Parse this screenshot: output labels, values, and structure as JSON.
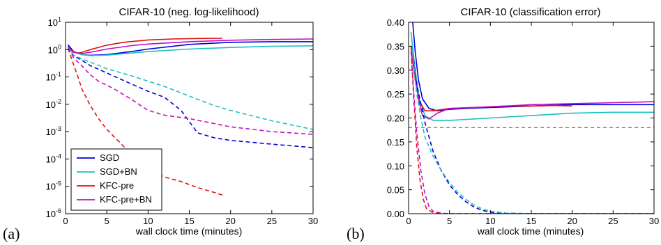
{
  "panel_labels": [
    "(a)",
    "(b)"
  ],
  "colors": {
    "SGD": "#0000dd",
    "SGD+BN": "#1fbfbf",
    "KFC-pre": "#e01010",
    "KFC-pre+BN": "#c010c0",
    "ref": "#555555"
  },
  "chart_data": [
    {
      "type": "line",
      "title": "CIFAR-10 (neg. log-likelihood)",
      "xlabel": "wall clock time (minutes)",
      "ylabel": "",
      "xlim": [
        0,
        30
      ],
      "ylim": [
        1e-06,
        10
      ],
      "yscale": "log",
      "xticks": [
        0,
        5,
        10,
        15,
        20,
        25,
        30
      ],
      "yticks": [
        {
          "base": "10",
          "exp": "-6",
          "value": 1e-06
        },
        {
          "base": "10",
          "exp": "-5",
          "value": 1e-05
        },
        {
          "base": "10",
          "exp": "-4",
          "value": 0.0001
        },
        {
          "base": "10",
          "exp": "-3",
          "value": 0.001
        },
        {
          "base": "10",
          "exp": "-2",
          "value": 0.01
        },
        {
          "base": "10",
          "exp": "-1",
          "value": 0.1
        },
        {
          "base": "10",
          "exp": "0",
          "value": 1
        },
        {
          "base": "10",
          "exp": "1",
          "value": 10
        }
      ],
      "legend": {
        "position": "lower-left",
        "entries": [
          "SGD",
          "SGD+BN",
          "KFC-pre",
          "KFC-pre+BN"
        ]
      },
      "series": [
        {
          "name": "SGD",
          "style": "solid",
          "points": [
            [
              0.3,
              1.5
            ],
            [
              1,
              0.85
            ],
            [
              2,
              0.65
            ],
            [
              3,
              0.62
            ],
            [
              5,
              0.66
            ],
            [
              8,
              0.85
            ],
            [
              10,
              1.05
            ],
            [
              15,
              1.55
            ],
            [
              20,
              1.85
            ],
            [
              25,
              1.95
            ],
            [
              30,
              1.95
            ]
          ]
        },
        {
          "name": "SGD+BN",
          "style": "solid",
          "points": [
            [
              0.3,
              1.2
            ],
            [
              1,
              0.8
            ],
            [
              2,
              0.65
            ],
            [
              3,
              0.6
            ],
            [
              5,
              0.63
            ],
            [
              8,
              0.75
            ],
            [
              10,
              0.85
            ],
            [
              15,
              1.05
            ],
            [
              20,
              1.2
            ],
            [
              25,
              1.32
            ],
            [
              30,
              1.38
            ]
          ]
        },
        {
          "name": "KFC-pre",
          "style": "solid",
          "points": [
            [
              0.3,
              1.2
            ],
            [
              1,
              0.85
            ],
            [
              1.5,
              0.75
            ],
            [
              2,
              0.8
            ],
            [
              3,
              1.0
            ],
            [
              5,
              1.45
            ],
            [
              7,
              1.85
            ],
            [
              10,
              2.25
            ],
            [
              13,
              2.45
            ],
            [
              16,
              2.55
            ],
            [
              19,
              2.6
            ]
          ]
        },
        {
          "name": "KFC-pre+BN",
          "style": "solid",
          "points": [
            [
              0.3,
              1.1
            ],
            [
              1,
              0.8
            ],
            [
              2,
              0.72
            ],
            [
              3,
              0.8
            ],
            [
              5,
              1.05
            ],
            [
              8,
              1.4
            ],
            [
              10,
              1.6
            ],
            [
              15,
              1.95
            ],
            [
              20,
              2.2
            ],
            [
              25,
              2.35
            ],
            [
              30,
              2.45
            ]
          ]
        },
        {
          "name": "SGD",
          "style": "dashed",
          "points": [
            [
              0.3,
              1.3
            ],
            [
              1,
              0.6
            ],
            [
              2,
              0.4
            ],
            [
              3,
              0.26
            ],
            [
              5,
              0.14
            ],
            [
              8,
              0.055
            ],
            [
              10,
              0.03
            ],
            [
              12,
              0.018
            ],
            [
              14,
              0.006
            ],
            [
              16,
              0.0009
            ],
            [
              18,
              0.0006
            ],
            [
              20,
              0.00048
            ],
            [
              25,
              0.00035
            ],
            [
              30,
              0.00026
            ]
          ]
        },
        {
          "name": "SGD+BN",
          "style": "dashed",
          "points": [
            [
              0.3,
              1.2
            ],
            [
              1,
              0.62
            ],
            [
              2,
              0.45
            ],
            [
              3,
              0.35
            ],
            [
              5,
              0.2
            ],
            [
              8,
              0.11
            ],
            [
              10,
              0.07
            ],
            [
              12,
              0.045
            ],
            [
              15,
              0.02
            ],
            [
              18,
              0.009
            ],
            [
              20,
              0.006
            ],
            [
              25,
              0.0025
            ],
            [
              30,
              0.0012
            ]
          ]
        },
        {
          "name": "KFC-pre",
          "style": "dashed",
          "points": [
            [
              0.3,
              1.1
            ],
            [
              0.8,
              0.4
            ],
            [
              1.5,
              0.1
            ],
            [
              2,
              0.035
            ],
            [
              3,
              0.009
            ],
            [
              4,
              0.003
            ],
            [
              5,
              0.0012
            ],
            [
              7,
              0.0003
            ],
            [
              8,
              0.00012
            ],
            [
              10,
              4e-05
            ],
            [
              12,
              2.2e-05
            ],
            [
              14,
              1.5e-05
            ],
            [
              16,
              9e-06
            ],
            [
              18,
              6e-06
            ],
            [
              19,
              4.8e-06
            ]
          ]
        },
        {
          "name": "KFC-pre+BN",
          "style": "dashed",
          "points": [
            [
              0.3,
              1.1
            ],
            [
              1,
              0.5
            ],
            [
              2,
              0.25
            ],
            [
              3,
              0.12
            ],
            [
              4,
              0.07
            ],
            [
              5,
              0.05
            ],
            [
              6,
              0.035
            ],
            [
              8,
              0.015
            ],
            [
              10,
              0.006
            ],
            [
              12,
              0.004
            ],
            [
              15,
              0.003
            ],
            [
              20,
              0.0015
            ],
            [
              25,
              0.001
            ],
            [
              30,
              0.0008
            ]
          ]
        }
      ]
    },
    {
      "type": "line",
      "title": "CIFAR-10 (classification error)",
      "xlabel": "wall clock time (minutes)",
      "ylabel": "",
      "xlim": [
        0,
        30
      ],
      "ylim": [
        0,
        0.4
      ],
      "yscale": "linear",
      "xticks": [
        0,
        5,
        10,
        15,
        20,
        25,
        30
      ],
      "yticks": [
        0.0,
        0.05,
        0.1,
        0.15,
        0.2,
        0.25,
        0.3,
        0.35,
        0.4
      ],
      "ytick_labels": [
        "0.00",
        "0.05",
        "0.10",
        "0.15",
        "0.20",
        "0.25",
        "0.30",
        "0.35",
        "0.40"
      ],
      "reference_line": {
        "y": 0.18,
        "style": "dashed"
      },
      "series": [
        {
          "name": "SGD",
          "style": "solid",
          "points": [
            [
              0.5,
              0.4
            ],
            [
              0.8,
              0.34
            ],
            [
              1.2,
              0.28
            ],
            [
              1.7,
              0.24
            ],
            [
              2.5,
              0.22
            ],
            [
              3.5,
              0.215
            ],
            [
              5,
              0.218
            ],
            [
              7,
              0.22
            ],
            [
              10,
              0.222
            ],
            [
              15,
              0.225
            ],
            [
              20,
              0.228
            ],
            [
              25,
              0.228
            ],
            [
              30,
              0.228
            ]
          ]
        },
        {
          "name": "SGD+BN",
          "style": "solid",
          "points": [
            [
              0.3,
              0.38
            ],
            [
              0.8,
              0.3
            ],
            [
              1.3,
              0.24
            ],
            [
              2,
              0.205
            ],
            [
              3,
              0.195
            ],
            [
              5,
              0.195
            ],
            [
              8,
              0.198
            ],
            [
              10,
              0.2
            ],
            [
              15,
              0.205
            ],
            [
              20,
              0.21
            ],
            [
              25,
              0.212
            ],
            [
              30,
              0.212
            ]
          ]
        },
        {
          "name": "KFC-pre",
          "style": "solid",
          "points": [
            [
              0.3,
              0.35
            ],
            [
              0.8,
              0.28
            ],
            [
              1.3,
              0.235
            ],
            [
              2,
              0.215
            ],
            [
              3,
              0.215
            ],
            [
              5,
              0.22
            ],
            [
              8,
              0.222
            ],
            [
              12,
              0.225
            ],
            [
              15,
              0.225
            ],
            [
              18,
              0.226
            ],
            [
              20,
              0.225
            ]
          ]
        },
        {
          "name": "KFC-pre+BN",
          "style": "solid",
          "points": [
            [
              0.3,
              0.35
            ],
            [
              0.8,
              0.29
            ],
            [
              1.2,
              0.24
            ],
            [
              1.7,
              0.205
            ],
            [
              2.5,
              0.198
            ],
            [
              3.5,
              0.21
            ],
            [
              5,
              0.22
            ],
            [
              8,
              0.222
            ],
            [
              12,
              0.225
            ],
            [
              15,
              0.228
            ],
            [
              20,
              0.23
            ],
            [
              25,
              0.232
            ],
            [
              30,
              0.234
            ]
          ]
        },
        {
          "name": "SGD",
          "style": "dashed",
          "points": [
            [
              0.4,
              0.35
            ],
            [
              1,
              0.27
            ],
            [
              2,
              0.19
            ],
            [
              3,
              0.13
            ],
            [
              4,
              0.09
            ],
            [
              5,
              0.06
            ],
            [
              6,
              0.04
            ],
            [
              7,
              0.025
            ],
            [
              8,
              0.014
            ],
            [
              9,
              0.007
            ],
            [
              10,
              0.003
            ],
            [
              12,
              0.001
            ],
            [
              15,
              0
            ],
            [
              30,
              0
            ]
          ]
        },
        {
          "name": "SGD+BN",
          "style": "dashed",
          "points": [
            [
              0.4,
              0.35
            ],
            [
              1,
              0.25
            ],
            [
              1.5,
              0.2
            ],
            [
              2,
              0.16
            ],
            [
              3,
              0.12
            ],
            [
              4,
              0.09
            ],
            [
              5,
              0.065
            ],
            [
              6,
              0.045
            ],
            [
              7,
              0.03
            ],
            [
              8,
              0.018
            ],
            [
              9,
              0.01
            ],
            [
              10,
              0.005
            ],
            [
              12,
              0.001
            ],
            [
              15,
              0
            ],
            [
              30,
              0
            ]
          ]
        },
        {
          "name": "KFC-pre",
          "style": "dashed",
          "points": [
            [
              0.3,
              0.35
            ],
            [
              0.6,
              0.25
            ],
            [
              1,
              0.14
            ],
            [
              1.4,
              0.07
            ],
            [
              1.8,
              0.03
            ],
            [
              2.2,
              0.01
            ],
            [
              3,
              0.002
            ],
            [
              4,
              0
            ],
            [
              30,
              0
            ]
          ]
        },
        {
          "name": "KFC-pre+BN",
          "style": "dashed",
          "points": [
            [
              0.3,
              0.34
            ],
            [
              0.6,
              0.26
            ],
            [
              1,
              0.17
            ],
            [
              1.5,
              0.09
            ],
            [
              2,
              0.04
            ],
            [
              2.5,
              0.015
            ],
            [
              3,
              0.005
            ],
            [
              4,
              0.001
            ],
            [
              5,
              0
            ],
            [
              30,
              0
            ]
          ]
        }
      ]
    }
  ]
}
